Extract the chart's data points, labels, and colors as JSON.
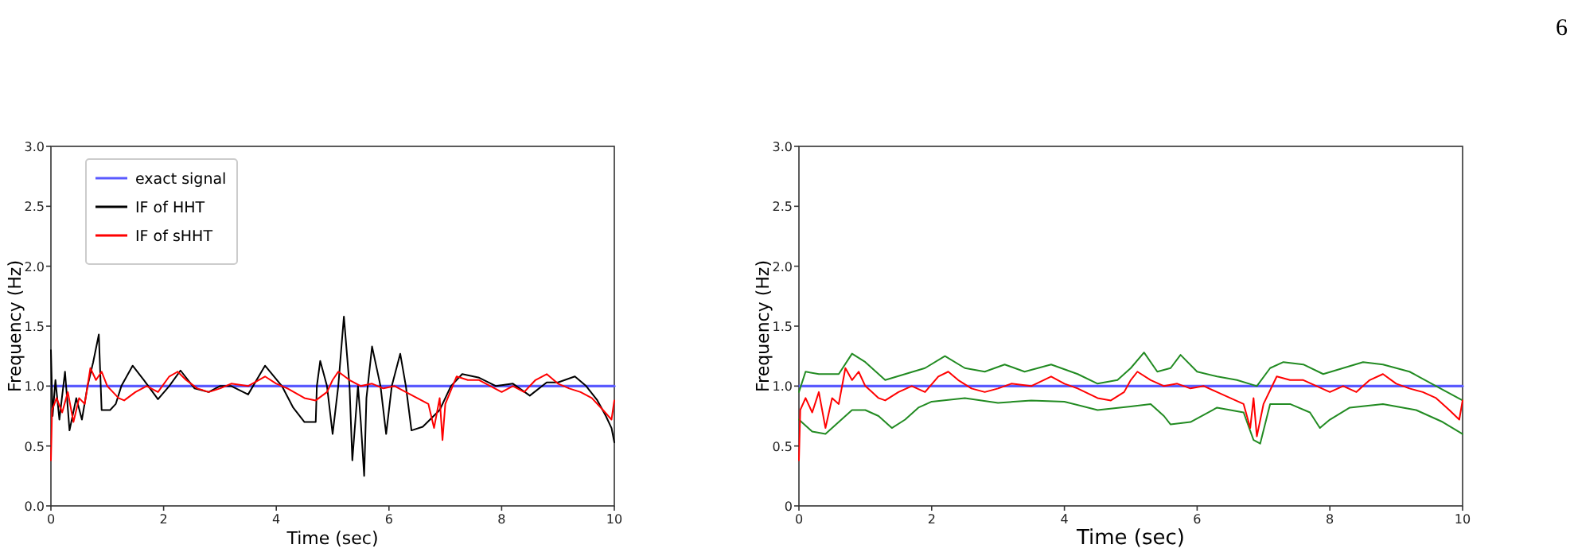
{
  "chart_data": [
    {
      "type": "line",
      "xlabel": "Time (sec)",
      "ylabel": "Frequency (Hz)",
      "xlim": [
        0,
        10
      ],
      "ylim": [
        0,
        3
      ],
      "xticks": [
        0,
        2,
        4,
        6,
        8,
        10
      ],
      "yticks": [
        {
          "value": 0,
          "label": "0.0"
        },
        {
          "value": 0.5,
          "label": "0.5"
        },
        {
          "value": 1,
          "label": "1.0"
        },
        {
          "value": 1.5,
          "label": "1.5"
        },
        {
          "value": 2,
          "label": "2.0"
        },
        {
          "value": 2.5,
          "label": "2.5"
        },
        {
          "value": 3,
          "label": "3.0"
        }
      ],
      "legend": "top left",
      "grid": false,
      "series": [
        {
          "name": "exact signal",
          "color": "#5a5aff",
          "x": [
            0,
            10
          ],
          "values": [
            1,
            1
          ]
        },
        {
          "name": "IF of HHT",
          "color": "#000000",
          "x": [
            0,
            0.03,
            0.08,
            0.15,
            0.25,
            0.33,
            0.45,
            0.55,
            0.65,
            0.75,
            0.85,
            0.9,
            1.05,
            1.15,
            1.25,
            1.45,
            1.65,
            1.9,
            2.1,
            2.3,
            2.55,
            2.8,
            3.0,
            3.2,
            3.5,
            3.8,
            4.1,
            4.3,
            4.5,
            4.7,
            4.72,
            4.78,
            4.9,
            5.0,
            5.1,
            5.2,
            5.3,
            5.35,
            5.45,
            5.5,
            5.56,
            5.6,
            5.7,
            5.85,
            5.95,
            6.05,
            6.2,
            6.3,
            6.4,
            6.6,
            6.9,
            7.1,
            7.3,
            7.6,
            7.9,
            8.2,
            8.5,
            8.8,
            9.0,
            9.3,
            9.5,
            9.7,
            9.85,
            9.95,
            10
          ],
          "values": [
            1.3,
            0.75,
            1.05,
            0.72,
            1.12,
            0.63,
            0.9,
            0.72,
            1.0,
            1.2,
            1.43,
            0.8,
            0.8,
            0.85,
            1.0,
            1.17,
            1.05,
            0.89,
            1.0,
            1.13,
            0.98,
            0.95,
            1.0,
            1.0,
            0.93,
            1.17,
            1.0,
            0.82,
            0.7,
            0.7,
            1.0,
            1.21,
            1.0,
            0.6,
            1.0,
            1.58,
            1.0,
            0.38,
            1.0,
            0.7,
            0.25,
            0.9,
            1.33,
            1.0,
            0.6,
            1.0,
            1.27,
            1.0,
            0.63,
            0.66,
            0.8,
            1.0,
            1.1,
            1.07,
            1.0,
            1.02,
            0.92,
            1.03,
            1.03,
            1.08,
            1.0,
            0.88,
            0.75,
            0.65,
            0.53
          ]
        },
        {
          "name": "IF of sHHT",
          "color": "#ff0000",
          "x": [
            0,
            0.02,
            0.1,
            0.2,
            0.3,
            0.4,
            0.5,
            0.6,
            0.7,
            0.8,
            0.9,
            1.0,
            1.1,
            1.2,
            1.3,
            1.5,
            1.7,
            1.9,
            2.1,
            2.25,
            2.4,
            2.6,
            2.8,
            3.0,
            3.2,
            3.5,
            3.8,
            4.0,
            4.2,
            4.5,
            4.7,
            4.9,
            5.0,
            5.1,
            5.3,
            5.5,
            5.7,
            5.9,
            6.1,
            6.3,
            6.5,
            6.7,
            6.8,
            6.9,
            6.95,
            7.0,
            7.2,
            7.4,
            7.6,
            7.8,
            8.0,
            8.2,
            8.4,
            8.6,
            8.8,
            9.0,
            9.2,
            9.4,
            9.6,
            9.8,
            9.95,
            10
          ],
          "values": [
            0.38,
            0.8,
            0.9,
            0.78,
            0.95,
            0.7,
            0.9,
            0.85,
            1.15,
            1.05,
            1.12,
            1.0,
            0.95,
            0.9,
            0.88,
            0.95,
            1.0,
            0.95,
            1.08,
            1.12,
            1.05,
            0.98,
            0.95,
            0.98,
            1.02,
            1.0,
            1.08,
            1.02,
            0.98,
            0.9,
            0.88,
            0.95,
            1.05,
            1.12,
            1.05,
            1.0,
            1.02,
            0.98,
            1.0,
            0.95,
            0.9,
            0.85,
            0.65,
            0.9,
            0.55,
            0.85,
            1.08,
            1.05,
            1.05,
            1.0,
            0.95,
            1.0,
            0.95,
            1.05,
            1.1,
            1.02,
            0.98,
            0.95,
            0.9,
            0.8,
            0.72,
            0.88
          ]
        }
      ]
    },
    {
      "type": "line",
      "xlabel": "Time (sec)",
      "ylabel": "Frequency (Hz)",
      "xlim": [
        0,
        10
      ],
      "ylim": [
        0,
        3
      ],
      "xticks": [
        0,
        2,
        4,
        6,
        8,
        10
      ],
      "yticks": [
        0,
        0.5,
        {
          "value": 1,
          "label": "1.0"
        },
        1.5,
        {
          "value": 2,
          "label": "2.0"
        },
        2.5,
        {
          "value": 3,
          "label": "3.0"
        }
      ],
      "grid": false,
      "annotations": [
        "6"
      ],
      "series": [
        {
          "color": "#5a5aff",
          "x": [
            0,
            10
          ],
          "values": [
            1,
            1
          ]
        },
        {
          "color": "#228b22",
          "x": [
            0,
            0.1,
            0.3,
            0.6,
            0.8,
            1.0,
            1.3,
            1.6,
            1.9,
            2.2,
            2.5,
            2.8,
            3.1,
            3.4,
            3.8,
            4.2,
            4.5,
            4.8,
            5.0,
            5.2,
            5.4,
            5.6,
            5.75,
            6.0,
            6.3,
            6.6,
            6.9,
            7.1,
            7.3,
            7.6,
            7.9,
            8.2,
            8.5,
            8.8,
            9.2,
            9.6,
            10
          ],
          "values": [
            0.95,
            1.12,
            1.1,
            1.1,
            1.27,
            1.2,
            1.05,
            1.1,
            1.15,
            1.25,
            1.15,
            1.12,
            1.18,
            1.12,
            1.18,
            1.1,
            1.02,
            1.05,
            1.15,
            1.28,
            1.12,
            1.15,
            1.26,
            1.12,
            1.08,
            1.05,
            1.0,
            1.15,
            1.2,
            1.18,
            1.1,
            1.15,
            1.2,
            1.18,
            1.12,
            1.0,
            0.88
          ]
        },
        {
          "color": "#228b22",
          "x": [
            0,
            0.2,
            0.4,
            0.6,
            0.8,
            1.0,
            1.2,
            1.4,
            1.6,
            1.8,
            2.0,
            2.5,
            3.0,
            3.5,
            4.0,
            4.5,
            5.0,
            5.3,
            5.5,
            5.6,
            5.9,
            6.3,
            6.7,
            6.85,
            6.95,
            7.1,
            7.4,
            7.7,
            7.85,
            8.0,
            8.3,
            8.8,
            9.3,
            9.7,
            10
          ],
          "values": [
            0.72,
            0.62,
            0.6,
            0.7,
            0.8,
            0.8,
            0.75,
            0.65,
            0.72,
            0.82,
            0.87,
            0.9,
            0.86,
            0.88,
            0.87,
            0.8,
            0.83,
            0.85,
            0.75,
            0.68,
            0.7,
            0.82,
            0.78,
            0.55,
            0.52,
            0.85,
            0.85,
            0.78,
            0.65,
            0.72,
            0.82,
            0.85,
            0.8,
            0.7,
            0.6
          ]
        },
        {
          "color": "#ff0000",
          "x": [
            0,
            0.02,
            0.1,
            0.2,
            0.3,
            0.4,
            0.5,
            0.6,
            0.7,
            0.8,
            0.9,
            1.0,
            1.1,
            1.2,
            1.3,
            1.5,
            1.7,
            1.9,
            2.1,
            2.25,
            2.4,
            2.6,
            2.8,
            3.0,
            3.2,
            3.5,
            3.8,
            4.0,
            4.2,
            4.5,
            4.7,
            4.9,
            5.0,
            5.1,
            5.3,
            5.5,
            5.7,
            5.9,
            6.1,
            6.3,
            6.5,
            6.7,
            6.8,
            6.85,
            6.9,
            7.0,
            7.2,
            7.4,
            7.6,
            7.8,
            8.0,
            8.2,
            8.4,
            8.6,
            8.8,
            9.0,
            9.2,
            9.4,
            9.6,
            9.8,
            9.95,
            10
          ],
          "values": [
            0.38,
            0.8,
            0.9,
            0.78,
            0.95,
            0.65,
            0.9,
            0.85,
            1.15,
            1.05,
            1.12,
            1.0,
            0.95,
            0.9,
            0.88,
            0.95,
            1.0,
            0.95,
            1.08,
            1.12,
            1.05,
            0.98,
            0.95,
            0.98,
            1.02,
            1.0,
            1.08,
            1.02,
            0.98,
            0.9,
            0.88,
            0.95,
            1.05,
            1.12,
            1.05,
            1.0,
            1.02,
            0.98,
            1.0,
            0.95,
            0.9,
            0.85,
            0.65,
            0.9,
            0.58,
            0.85,
            1.08,
            1.05,
            1.05,
            1.0,
            0.95,
            1.0,
            0.95,
            1.05,
            1.1,
            1.02,
            0.98,
            0.95,
            0.9,
            0.8,
            0.72,
            0.88
          ]
        }
      ]
    }
  ]
}
